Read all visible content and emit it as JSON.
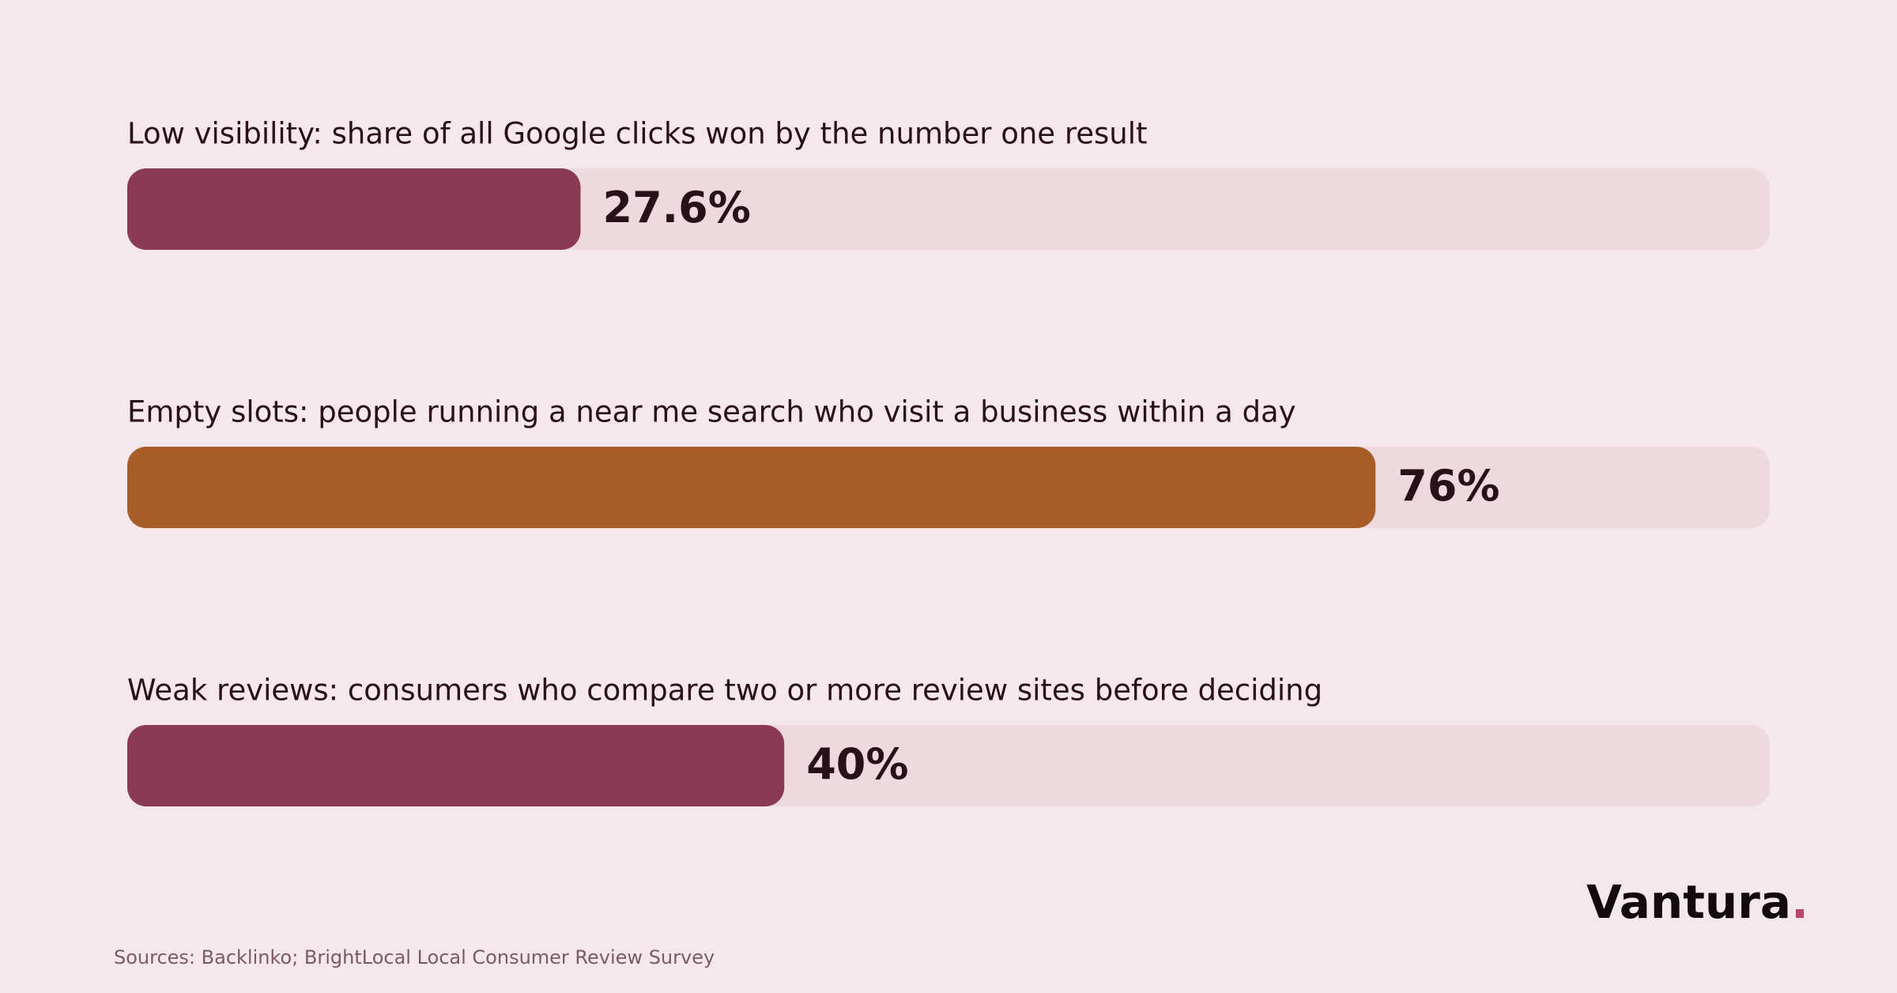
{
  "chart_data": {
    "type": "bar",
    "categories": [
      "Low visibility: share of all Google clicks won by the number one result",
      "Empty slots: people running a near me search who visit a business within a day",
      "Weak reviews: consumers who compare two or more review sites before deciding"
    ],
    "values": [
      27.6,
      76,
      40
    ],
    "value_labels": [
      "27.6%",
      "76%",
      "40%"
    ],
    "colors": [
      "#8b3a56",
      "#a65d28",
      "#8b3a56"
    ],
    "xlim": [
      0,
      100
    ],
    "source": "Sources: Backlinko; BrightLocal Local Consumer Review Survey",
    "brand": "Vantura",
    "brand_dot": "."
  }
}
